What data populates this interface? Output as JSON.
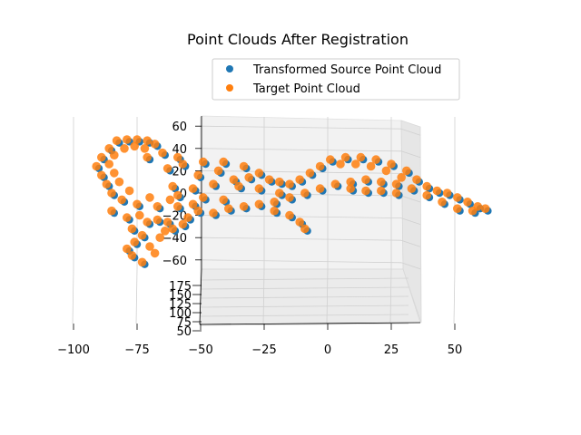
{
  "chart_data": {
    "type": "scatter",
    "projection": "3d",
    "title": "Point Clouds After Registration",
    "xlabel": "",
    "ylabel": "",
    "zlabel": "",
    "xlim": [
      -100,
      65
    ],
    "ylim": [
      50,
      190
    ],
    "zlim": [
      -70,
      65
    ],
    "x_ticks": [
      "−100",
      "−75",
      "−50",
      "−25",
      "0",
      "25",
      "50"
    ],
    "y_ticks": [
      "50",
      "75",
      "100",
      "125",
      "150",
      "175"
    ],
    "z_ticks": [
      "−60",
      "−40",
      "−20",
      "0",
      "20",
      "40",
      "60"
    ],
    "grid": true,
    "legend_position": "upper-right",
    "series": [
      {
        "name": "Transformed Source Point Cloud",
        "color": "#1f77b4",
        "note_points": "shape traced from image; dense organic point cloud (x, z) in data units",
        "points": [
          [
            -82,
            45
          ],
          [
            -78,
            46
          ],
          [
            -74,
            46
          ],
          [
            -70,
            45
          ],
          [
            -67,
            42
          ],
          [
            -85,
            38
          ],
          [
            -88,
            30
          ],
          [
            -90,
            22
          ],
          [
            -88,
            14
          ],
          [
            -86,
            6
          ],
          [
            -84,
            -2
          ],
          [
            -80,
            -8
          ],
          [
            -74,
            -12
          ],
          [
            -66,
            -14
          ],
          [
            -58,
            -14
          ],
          [
            -52,
            -12
          ],
          [
            -50,
            -18
          ],
          [
            -54,
            -24
          ],
          [
            -62,
            -28
          ],
          [
            -70,
            -28
          ],
          [
            -78,
            -24
          ],
          [
            -84,
            -18
          ],
          [
            -76,
            -34
          ],
          [
            -72,
            -40
          ],
          [
            -75,
            -46
          ],
          [
            -78,
            -52
          ],
          [
            -76,
            -58
          ],
          [
            -72,
            -64
          ],
          [
            -66,
            -26
          ],
          [
            -60,
            -34
          ],
          [
            -56,
            -30
          ],
          [
            -62,
            20
          ],
          [
            -56,
            24
          ],
          [
            -48,
            26
          ],
          [
            -40,
            26
          ],
          [
            -32,
            22
          ],
          [
            -26,
            16
          ],
          [
            -22,
            10
          ],
          [
            -18,
            8
          ],
          [
            -14,
            6
          ],
          [
            -10,
            10
          ],
          [
            -6,
            16
          ],
          [
            -2,
            22
          ],
          [
            2,
            28
          ],
          [
            8,
            30
          ],
          [
            14,
            30
          ],
          [
            20,
            28
          ],
          [
            26,
            24
          ],
          [
            32,
            18
          ],
          [
            36,
            10
          ],
          [
            40,
            4
          ],
          [
            44,
            0
          ],
          [
            48,
            -2
          ],
          [
            52,
            -6
          ],
          [
            56,
            -10
          ],
          [
            60,
            -14
          ],
          [
            63,
            -16
          ],
          [
            58,
            -18
          ],
          [
            52,
            -16
          ],
          [
            46,
            -10
          ],
          [
            40,
            -4
          ],
          [
            34,
            2
          ],
          [
            28,
            6
          ],
          [
            22,
            8
          ],
          [
            16,
            10
          ],
          [
            10,
            8
          ],
          [
            4,
            6
          ],
          [
            -2,
            2
          ],
          [
            -8,
            -2
          ],
          [
            -14,
            -6
          ],
          [
            -20,
            -10
          ],
          [
            -26,
            -12
          ],
          [
            -32,
            -14
          ],
          [
            -38,
            -16
          ],
          [
            -44,
            -20
          ],
          [
            -20,
            -18
          ],
          [
            -14,
            -22
          ],
          [
            -10,
            -28
          ],
          [
            -8,
            -34
          ],
          [
            10,
            2
          ],
          [
            16,
            0
          ],
          [
            22,
            0
          ],
          [
            28,
            -2
          ],
          [
            -60,
            4
          ],
          [
            -52,
            2
          ],
          [
            -44,
            6
          ],
          [
            -36,
            10
          ],
          [
            -30,
            12
          ],
          [
            -70,
            30
          ],
          [
            -64,
            34
          ],
          [
            -58,
            30
          ],
          [
            -50,
            14
          ],
          [
            -42,
            18
          ],
          [
            -34,
            4
          ],
          [
            -26,
            2
          ],
          [
            -18,
            -2
          ],
          [
            -58,
            -4
          ],
          [
            -48,
            -6
          ],
          [
            -40,
            -8
          ]
        ]
      },
      {
        "name": "Target Point Cloud",
        "color": "#ff7f0e",
        "note_points": "shape traced from image; dense organic point cloud (x, z) in data units",
        "points": [
          [
            -83,
            47
          ],
          [
            -79,
            48
          ],
          [
            -75,
            48
          ],
          [
            -71,
            47
          ],
          [
            -68,
            44
          ],
          [
            -86,
            40
          ],
          [
            -89,
            32
          ],
          [
            -91,
            24
          ],
          [
            -89,
            16
          ],
          [
            -87,
            8
          ],
          [
            -85,
            0
          ],
          [
            -81,
            -6
          ],
          [
            -75,
            -10
          ],
          [
            -67,
            -12
          ],
          [
            -59,
            -12
          ],
          [
            -53,
            -10
          ],
          [
            -51,
            -16
          ],
          [
            -55,
            -22
          ],
          [
            -63,
            -26
          ],
          [
            -71,
            -26
          ],
          [
            -79,
            -22
          ],
          [
            -85,
            -16
          ],
          [
            -77,
            -32
          ],
          [
            -73,
            -38
          ],
          [
            -76,
            -44
          ],
          [
            -79,
            -50
          ],
          [
            -77,
            -56
          ],
          [
            -73,
            -62
          ],
          [
            -67,
            -24
          ],
          [
            -61,
            -32
          ],
          [
            -57,
            -28
          ],
          [
            -63,
            22
          ],
          [
            -57,
            26
          ],
          [
            -49,
            28
          ],
          [
            -41,
            28
          ],
          [
            -33,
            24
          ],
          [
            -27,
            18
          ],
          [
            -23,
            12
          ],
          [
            -19,
            10
          ],
          [
            -15,
            8
          ],
          [
            -11,
            12
          ],
          [
            -7,
            18
          ],
          [
            -3,
            24
          ],
          [
            1,
            30
          ],
          [
            7,
            32
          ],
          [
            13,
            32
          ],
          [
            19,
            30
          ],
          [
            25,
            26
          ],
          [
            31,
            20
          ],
          [
            35,
            12
          ],
          [
            39,
            6
          ],
          [
            43,
            2
          ],
          [
            47,
            0
          ],
          [
            51,
            -4
          ],
          [
            55,
            -8
          ],
          [
            59,
            -12
          ],
          [
            62,
            -14
          ],
          [
            57,
            -16
          ],
          [
            51,
            -14
          ],
          [
            45,
            -8
          ],
          [
            39,
            -2
          ],
          [
            33,
            4
          ],
          [
            27,
            8
          ],
          [
            21,
            10
          ],
          [
            15,
            12
          ],
          [
            9,
            10
          ],
          [
            3,
            8
          ],
          [
            -3,
            4
          ],
          [
            -9,
            0
          ],
          [
            -15,
            -4
          ],
          [
            -21,
            -8
          ],
          [
            -27,
            -10
          ],
          [
            -33,
            -12
          ],
          [
            -39,
            -14
          ],
          [
            -45,
            -18
          ],
          [
            -21,
            -16
          ],
          [
            -15,
            -20
          ],
          [
            -11,
            -26
          ],
          [
            -9,
            -32
          ],
          [
            9,
            4
          ],
          [
            15,
            2
          ],
          [
            21,
            2
          ],
          [
            27,
            0
          ],
          [
            -61,
            6
          ],
          [
            -53,
            4
          ],
          [
            -45,
            8
          ],
          [
            -37,
            12
          ],
          [
            -31,
            14
          ],
          [
            -71,
            32
          ],
          [
            -65,
            36
          ],
          [
            -59,
            32
          ],
          [
            -51,
            16
          ],
          [
            -43,
            20
          ],
          [
            -35,
            6
          ],
          [
            -27,
            4
          ],
          [
            -19,
            0
          ],
          [
            -59,
            -2
          ],
          [
            -49,
            -4
          ],
          [
            -41,
            -6
          ],
          [
            -80,
            40
          ],
          [
            -76,
            42
          ],
          [
            -72,
            40
          ],
          [
            -84,
            34
          ],
          [
            -86,
            26
          ],
          [
            -84,
            18
          ],
          [
            -82,
            10
          ],
          [
            -78,
            2
          ],
          [
            -70,
            -4
          ],
          [
            -62,
            -6
          ],
          [
            5,
            26
          ],
          [
            11,
            26
          ],
          [
            17,
            24
          ],
          [
            23,
            20
          ],
          [
            29,
            14
          ],
          [
            -66,
            -40
          ],
          [
            -70,
            -48
          ],
          [
            -68,
            -54
          ],
          [
            -64,
            -34
          ],
          [
            -74,
            -20
          ]
        ]
      }
    ]
  }
}
